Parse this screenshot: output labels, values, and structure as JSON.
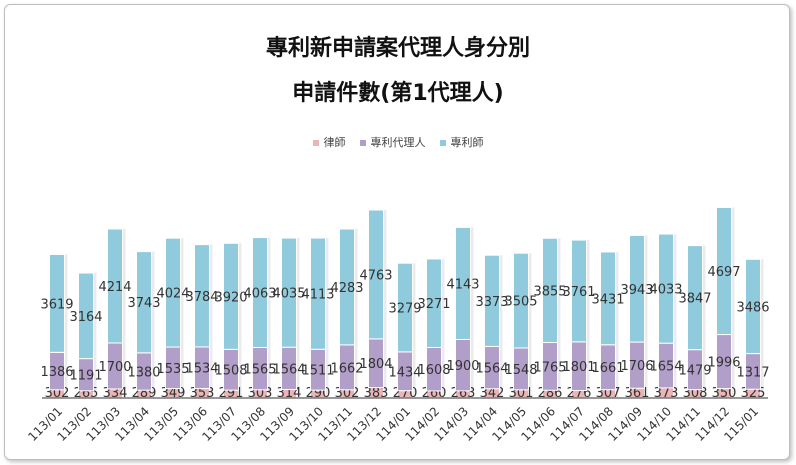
{
  "chart_data": {
    "type": "bar",
    "stacked": true,
    "title": "專利新申請案代理人身分別",
    "subtitle": "申請件數(第1代理人)",
    "legend_position": "top",
    "grid": false,
    "categories": [
      "113/01",
      "113/02",
      "113/03",
      "113/04",
      "113/05",
      "113/06",
      "113/07",
      "113/08",
      "113/09",
      "113/10",
      "113/11",
      "113/12",
      "114/01",
      "114/02",
      "114/03",
      "114/04",
      "114/05",
      "114/06",
      "114/07",
      "114/08",
      "114/09",
      "114/10",
      "114/11",
      "114/12",
      "115/01"
    ],
    "series": [
      {
        "name": "律師",
        "color": "#e9b5b7",
        "values": [
          302,
          265,
          334,
          289,
          349,
          353,
          291,
          303,
          314,
          290,
          302,
          383,
          270,
          260,
          263,
          342,
          301,
          286,
          276,
          307,
          361,
          373,
          308,
          350,
          325
        ]
      },
      {
        "name": "專利代理人",
        "color": "#b29fc9",
        "values": [
          1386,
          1191,
          1700,
          1380,
          1535,
          1534,
          1508,
          1565,
          1564,
          1511,
          1662,
          1804,
          1434,
          1608,
          1900,
          1564,
          1548,
          1765,
          1801,
          1661,
          1706,
          1654,
          1479,
          1996,
          1317
        ]
      },
      {
        "name": "專利師",
        "color": "#8fcbdc",
        "values": [
          3619,
          3164,
          4214,
          3743,
          4024,
          3784,
          3920,
          4063,
          4035,
          4113,
          4283,
          4763,
          3279,
          3271,
          4143,
          3373,
          3505,
          3855,
          3761,
          3431,
          3943,
          4033,
          3847,
          4697,
          3486
        ]
      }
    ]
  }
}
